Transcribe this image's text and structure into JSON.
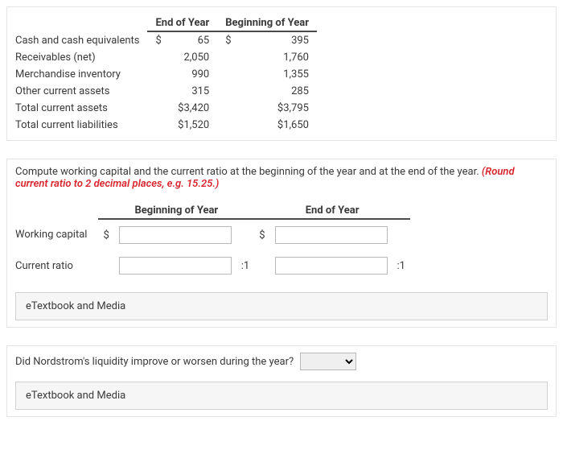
{
  "table": {
    "headers": {
      "end": "End of Year",
      "begin": "Beginning of Year"
    },
    "rows": [
      {
        "label": "Cash and cash equivalents",
        "end_cur": "$",
        "end_val": "65",
        "beg_cur": "$",
        "beg_val": "395"
      },
      {
        "label": "Receivables (net)",
        "end_cur": "",
        "end_val": "2,050",
        "beg_cur": "",
        "beg_val": "1,760"
      },
      {
        "label": "Merchandise inventory",
        "end_cur": "",
        "end_val": "990",
        "beg_cur": "",
        "beg_val": "1,355"
      },
      {
        "label": "Other current assets",
        "end_cur": "",
        "end_val": "315",
        "beg_cur": "",
        "beg_val": "285"
      },
      {
        "label": "Total current assets",
        "end_cur": "",
        "end_val": "$3,420",
        "beg_cur": "",
        "beg_val": "$3,795"
      },
      {
        "label": "Total current liabilities",
        "end_cur": "",
        "end_val": "$1,520",
        "beg_cur": "",
        "beg_val": "$1,650"
      }
    ]
  },
  "q1": {
    "instruction_main": "Compute working capital and the current ratio at the beginning of the year and at the end of the year. ",
    "instruction_hint": "(Round current ratio to 2 decimal places, e.g. 15.25.)",
    "col_begin": "Beginning of Year",
    "col_end": "End of Year",
    "row1": "Working capital",
    "row2": "Current ratio",
    "dollar": "$",
    "suffix": ":1",
    "etm": "eTextbook and Media"
  },
  "q2": {
    "text": "Did Nordstrom's liquidity improve or worsen during the year?",
    "etm": "eTextbook and Media"
  }
}
